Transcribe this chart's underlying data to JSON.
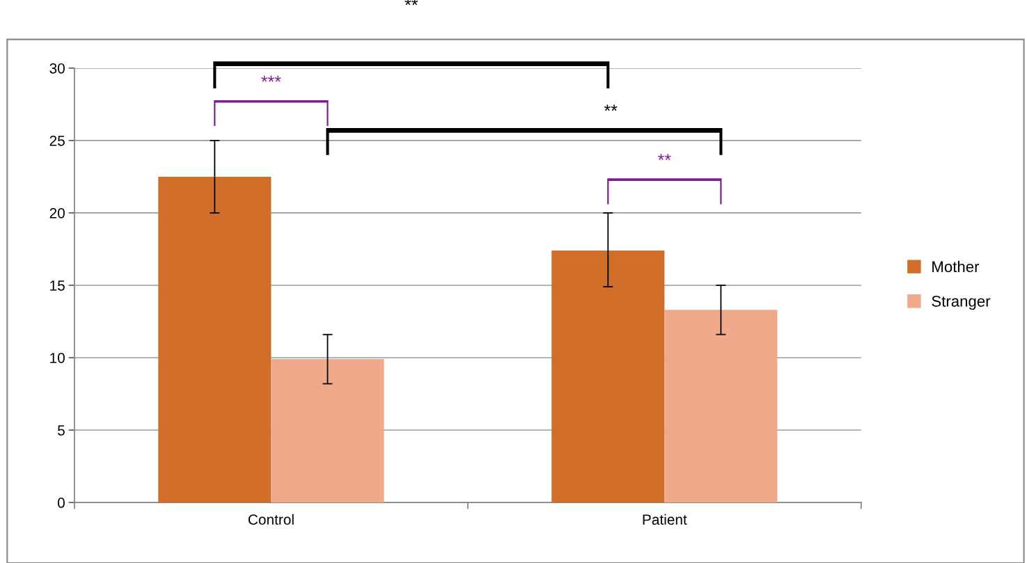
{
  "chart_data": {
    "type": "bar",
    "categories": [
      "Control",
      "Patient"
    ],
    "series": [
      {
        "name": "Mother",
        "color": "#d06e2a",
        "values": [
          22.5,
          17.4
        ],
        "errors": [
          [
            20.0,
            25.0
          ],
          [
            14.9,
            20.0
          ]
        ]
      },
      {
        "name": "Stranger",
        "color": "#f0a98b",
        "values": [
          9.9,
          13.3
        ],
        "errors": [
          [
            8.2,
            11.6
          ],
          [
            11.6,
            15.0
          ]
        ]
      }
    ],
    "ylim": [
      0,
      30
    ],
    "yticks": [
      0,
      5,
      10,
      15,
      20,
      25,
      30
    ],
    "grid": "y",
    "legend": "right",
    "annotations": [
      "**",
      "***",
      "**",
      "**"
    ]
  }
}
